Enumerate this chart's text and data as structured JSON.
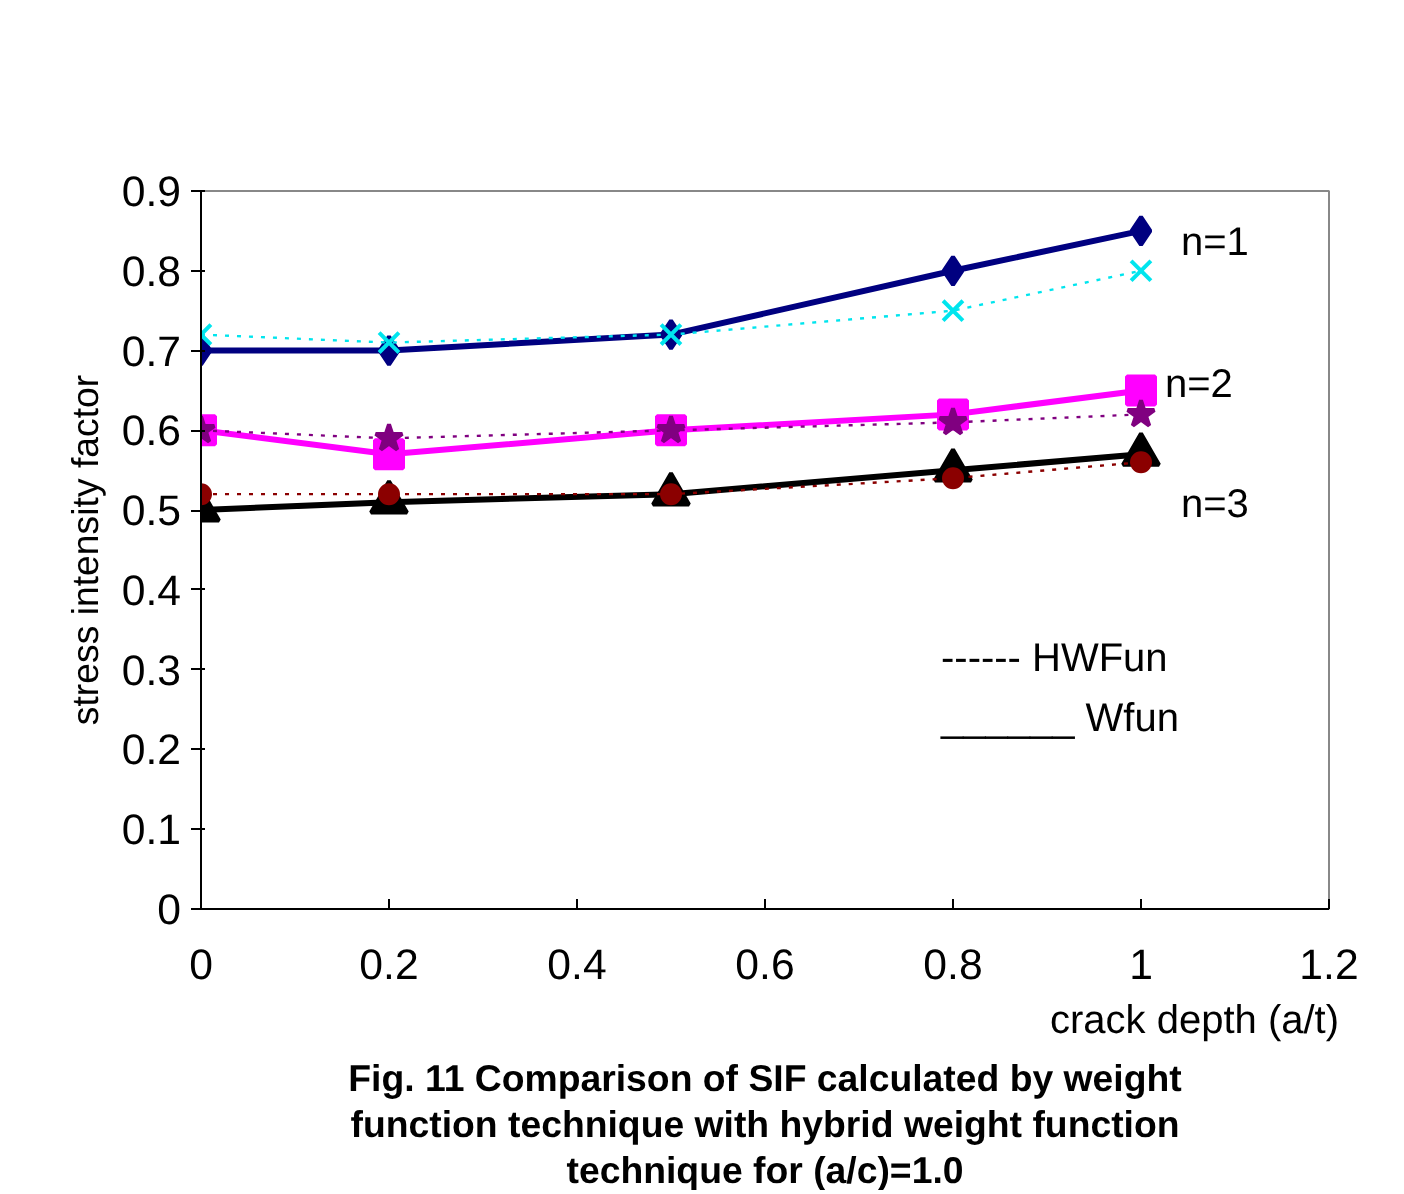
{
  "chart_data": {
    "type": "line",
    "title": "Fig. 11 Comparison of SIF calculated by weight function technique with hybrid weight function technique for (a/c)=1.0",
    "xlabel": "crack depth (a/t)",
    "ylabel": "stress intensity factor",
    "x": [
      0,
      0.2,
      0.5,
      0.8,
      1
    ],
    "xlim": [
      0,
      1.2
    ],
    "xticks": [
      0,
      0.2,
      0.4,
      0.6,
      0.8,
      1,
      1.2
    ],
    "ylim": [
      0,
      0.9
    ],
    "yticks": [
      0,
      0.1,
      0.2,
      0.3,
      0.4,
      0.5,
      0.6,
      0.7,
      0.8,
      0.9
    ],
    "grid": false,
    "series": [
      {
        "color": "#000080",
        "marker": "diamond",
        "line_style": "solid",
        "values": [
          0.7,
          0.7,
          0.72,
          0.8,
          0.85
        ]
      },
      {
        "color": "#00e5ee",
        "marker": "cross",
        "line_style": "dotted",
        "values": [
          0.72,
          0.71,
          0.72,
          0.75,
          0.8
        ]
      },
      {
        "color": "#ff00ff",
        "marker": "square",
        "line_style": "solid",
        "values": [
          0.6,
          0.57,
          0.6,
          0.62,
          0.65
        ]
      },
      {
        "color": "#800080",
        "marker": "star",
        "line_style": "dotted",
        "values": [
          0.6,
          0.59,
          0.6,
          0.61,
          0.62
        ]
      },
      {
        "color": "#000000",
        "marker": "triangle",
        "line_style": "solid",
        "values": [
          0.5,
          0.51,
          0.52,
          0.55,
          0.57
        ]
      },
      {
        "color": "#8b0000",
        "marker": "circle",
        "line_style": "dotted",
        "values": [
          0.52,
          0.52,
          0.52,
          0.54,
          0.56
        ]
      }
    ],
    "annotations": [
      "n=1",
      "n=2",
      "n=3",
      "------ HWFun",
      "______ Wfun"
    ]
  }
}
